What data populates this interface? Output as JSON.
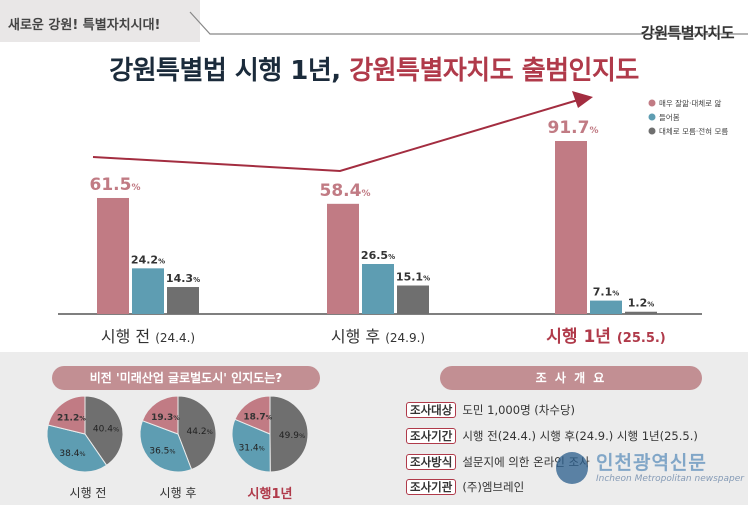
{
  "header": {
    "slogan": "새로운 강원! 특별자치시대!",
    "brand": "강원특별자치도",
    "title_part1": "강원특별법 시행 1년,",
    "title_part2": "강원특별자치도 출범인지도"
  },
  "colors": {
    "series1": "#c17b84",
    "series2": "#5e9db2",
    "series3": "#6f6f6f",
    "accent": "#b03a4a"
  },
  "chart_data": [
    {
      "type": "bar",
      "categories": [
        "시행 전 (24.4.)",
        "시행 후 (24.9.)",
        "시행 1년 (25.5.)"
      ],
      "category_parts": [
        {
          "main": "시행 전",
          "sub": "(24.4.)"
        },
        {
          "main": "시행 후",
          "sub": "(24.9.)"
        },
        {
          "main": "시행 1년",
          "sub": "(25.5.)"
        }
      ],
      "series": [
        {
          "name": "매우 잘앎·대체로 앎",
          "values": [
            61.5,
            58.4,
            91.7
          ]
        },
        {
          "name": "들어봄",
          "values": [
            24.2,
            26.5,
            7.1
          ]
        },
        {
          "name": "대체로 모름·전혀 모름",
          "values": [
            14.3,
            15.1,
            1.2
          ]
        }
      ],
      "unit": "%",
      "ylim": [
        0,
        100
      ],
      "legend": "top-right"
    },
    {
      "type": "pie",
      "title": "비전 '미래산업 글로벌도시' 인지도는?",
      "pies": [
        {
          "label": "시행 전",
          "values": [
            21.2,
            38.4,
            40.4
          ]
        },
        {
          "label": "시행 후",
          "values": [
            19.3,
            36.5,
            44.2
          ]
        },
        {
          "label": "시행1년",
          "values": [
            18.7,
            31.4,
            49.9
          ]
        }
      ],
      "unit": "%"
    }
  ],
  "survey": {
    "title": "조 사 개 요",
    "rows": [
      {
        "tag": "조사대상",
        "text": "도민 1,000명 (차수당)"
      },
      {
        "tag": "조사기간",
        "text": "시행 전(24.4.) 시행 후(24.9.) 시행 1년(25.5.)"
      },
      {
        "tag": "조사방식",
        "text": "설문지에 의한 온라인 조사"
      },
      {
        "tag": "조사기관",
        "text": "(주)엠브레인"
      }
    ]
  },
  "watermark": {
    "name": "인천광역신문",
    "sub": "Incheon Metropolitan newspaper"
  }
}
